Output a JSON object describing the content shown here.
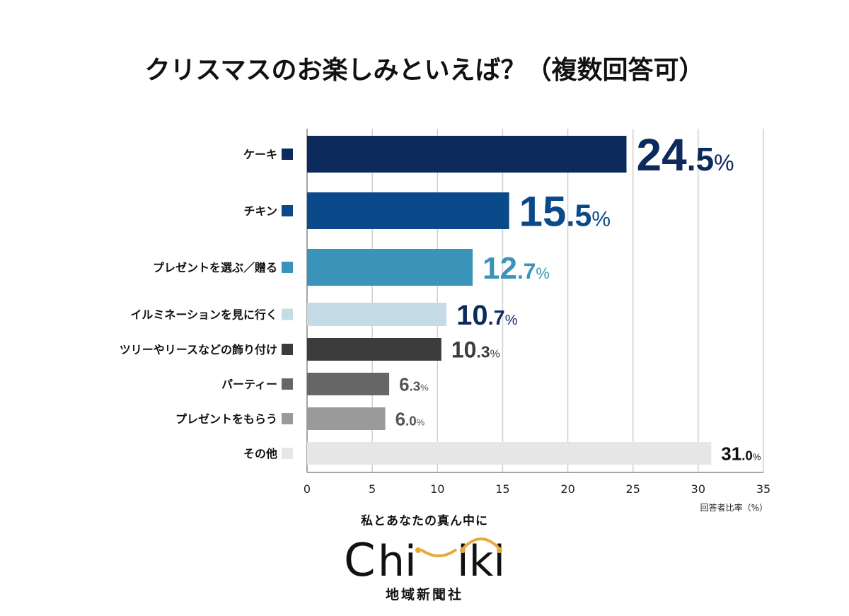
{
  "chart_data": {
    "type": "bar",
    "orientation": "horizontal",
    "title": "クリスマスのお楽しみといえば？（複数回答可）",
    "xlabel": "回答者比率（%）",
    "xlim": [
      0,
      35
    ],
    "xticks": [
      0,
      5,
      10,
      15,
      20,
      25,
      30,
      35
    ],
    "grid": true,
    "categories": [
      "ケーキ",
      "チキン",
      "プレゼントを選ぶ／贈る",
      "イルミネーションを見に行く",
      "ツリーやリースなどの飾り付け",
      "パーティー",
      "プレゼントをもらう",
      "その他"
    ],
    "values": [
      24.5,
      15.5,
      12.7,
      10.7,
      10.3,
      6.3,
      6.0,
      31.0
    ],
    "colors": [
      "#0d2a5c",
      "#0b4a8a",
      "#3a93b8",
      "#c5dce6",
      "#3c3c3c",
      "#666666",
      "#9a9a9a",
      "#e6e6e6"
    ],
    "label_colors": [
      "#0d2a5c",
      "#0b4a8a",
      "#3a93b8",
      "#0d2a5c",
      "#3c3c3c",
      "#555555",
      "#555555",
      "#111111"
    ]
  },
  "branding": {
    "tagline": "私とあなたの真ん中に",
    "logo_text": "Chiiki",
    "company": "地域新聞社",
    "accent": "#e8a93a"
  }
}
